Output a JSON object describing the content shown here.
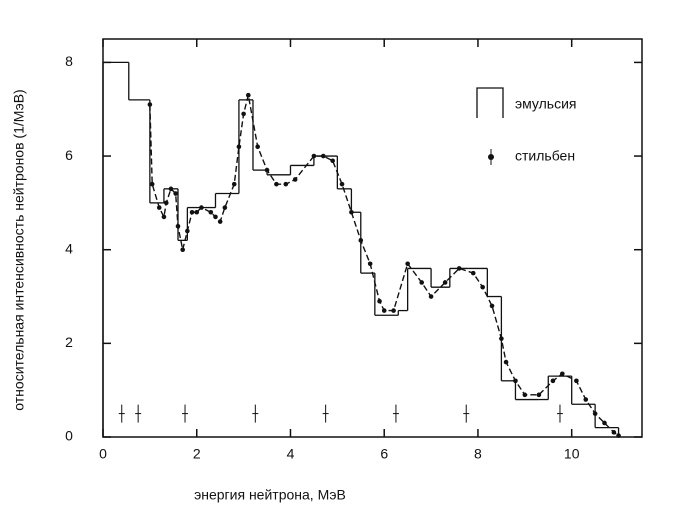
{
  "chart_data": {
    "type": "line",
    "xlabel": "энергия нейтрона, МэВ",
    "ylabel": "относительная интенсивность нейтронов (1/МэВ)",
    "xlim": [
      0,
      11.5
    ],
    "ylim": [
      0,
      8.5
    ],
    "xticks": [
      0,
      2,
      4,
      6,
      8,
      10
    ],
    "yticks": [
      0,
      2,
      4,
      6,
      8
    ],
    "legend": "upper right",
    "series": [
      {
        "name": "эмульсия",
        "style": "step",
        "color": "#111111",
        "bins": [
          0,
          0.55,
          1.0,
          1.3,
          1.6,
          1.8,
          2.1,
          2.4,
          2.9,
          3.2,
          3.5,
          4.0,
          4.5,
          5.0,
          5.3,
          5.5,
          5.8,
          6.3,
          6.5,
          7.0,
          7.4,
          7.8,
          8.2,
          8.5,
          8.8,
          9.3,
          9.5,
          10.0,
          10.5,
          11.0
        ],
        "values": [
          8,
          7.2,
          5.0,
          5.3,
          4.2,
          4.9,
          4.9,
          5.2,
          7.2,
          5.7,
          5.6,
          5.8,
          6.0,
          5.3,
          4.8,
          3.5,
          2.6,
          2.7,
          3.6,
          3.2,
          3.6,
          3.6,
          3.0,
          1.2,
          0.8,
          0.8,
          1.3,
          0.7,
          0.2
        ]
      },
      {
        "name": "стильбен",
        "style": "dashed-points",
        "color": "#111111",
        "x": [
          1.0,
          1.05,
          1.2,
          1.3,
          1.35,
          1.45,
          1.55,
          1.6,
          1.7,
          1.8,
          1.9,
          2.0,
          2.1,
          2.3,
          2.4,
          2.5,
          2.6,
          2.8,
          2.9,
          3.0,
          3.1,
          3.3,
          3.5,
          3.7,
          3.9,
          4.1,
          4.5,
          4.7,
          4.9,
          5.1,
          5.3,
          5.5,
          5.7,
          5.9,
          6.0,
          6.2,
          6.5,
          6.8,
          7.0,
          7.3,
          7.6,
          7.9,
          8.1,
          8.3,
          8.5,
          8.6,
          8.8,
          9.0,
          9.3,
          9.6,
          9.8,
          10.1,
          10.3,
          10.5,
          10.7,
          10.9,
          11.0
        ],
        "values": [
          7.1,
          5.4,
          4.9,
          4.7,
          5.0,
          5.3,
          5.2,
          4.5,
          4.0,
          4.4,
          4.8,
          4.8,
          4.9,
          4.8,
          4.7,
          4.6,
          4.9,
          5.4,
          6.2,
          6.9,
          7.3,
          6.2,
          5.7,
          5.4,
          5.4,
          5.5,
          6.0,
          6.0,
          5.9,
          5.4,
          4.8,
          4.2,
          3.7,
          2.9,
          2.7,
          2.7,
          3.7,
          3.3,
          3.0,
          3.3,
          3.6,
          3.5,
          3.2,
          2.8,
          2.1,
          1.6,
          1.2,
          0.9,
          0.9,
          1.2,
          1.35,
          1.2,
          0.8,
          0.5,
          0.3,
          0.1,
          0.03
        ]
      }
    ],
    "resolution_marks": {
      "x": [
        0.4,
        0.75,
        1.75,
        3.25,
        4.75,
        6.25,
        7.75,
        9.75
      ],
      "y": 0.5
    }
  }
}
